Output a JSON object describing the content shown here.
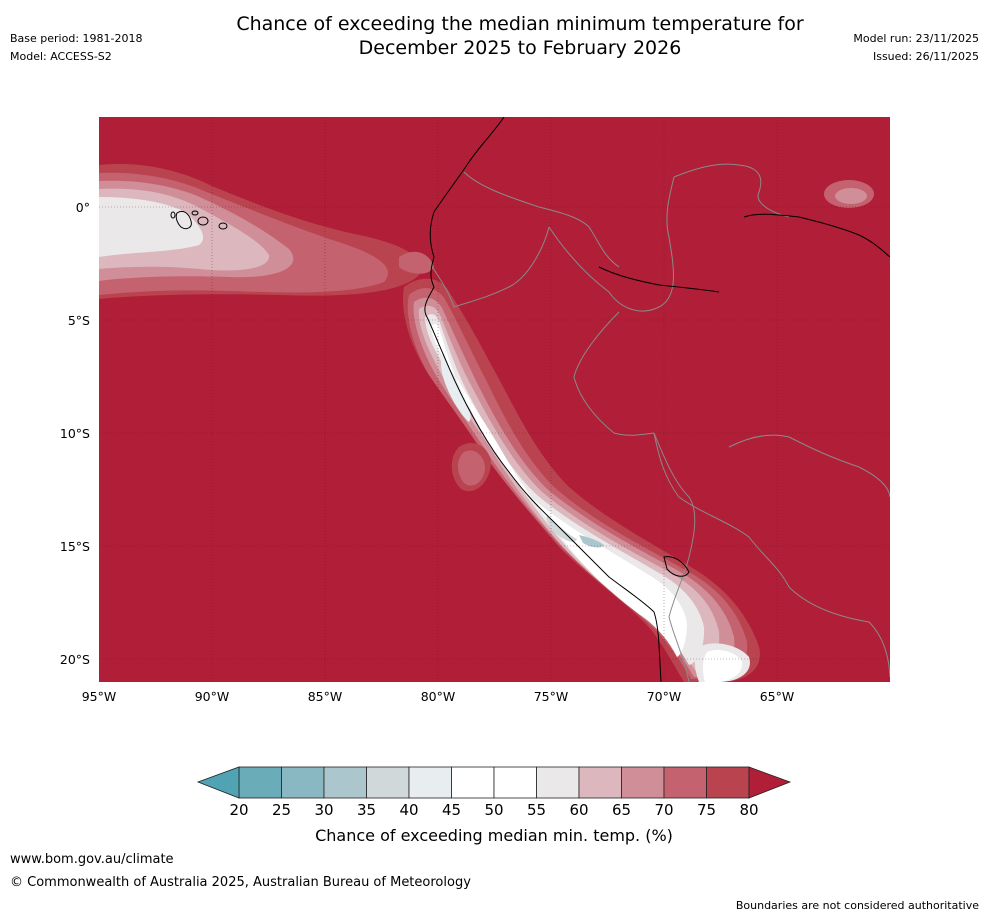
{
  "header": {
    "title_line1": "Chance of exceeding the median minimum temperature for",
    "title_line2": "December 2025 to February 2026",
    "base_period": "Base period: 1981-2018",
    "model": "Model: ACCESS-S2",
    "model_run": "Model run: 23/11/2025",
    "issued": "Issued: 26/11/2025"
  },
  "map": {
    "lat_labels": [
      "0°",
      "5°S",
      "10°S",
      "15°S",
      "20°S"
    ],
    "lon_labels": [
      "95°W",
      "90°W",
      "85°W",
      "80°W",
      "75°W",
      "70°W",
      "65°W"
    ],
    "background_color": "#b11e38"
  },
  "colorbar": {
    "ticks": [
      "20",
      "25",
      "30",
      "35",
      "40",
      "45",
      "50",
      "55",
      "60",
      "65",
      "70",
      "75",
      "80"
    ],
    "colors": [
      "#6aacb8",
      "#8ab8c2",
      "#abc7cd",
      "#d0d8da",
      "#e8edf0",
      "#ffffff",
      "#ffffff",
      "#ebe8e9",
      "#ddb7be",
      "#d08e98",
      "#c4636f",
      "#b9444f"
    ],
    "under_color": "#4fa3b2",
    "over_color": "#b11e38",
    "label": "Chance of exceeding median min. temp. (%)"
  },
  "footer": {
    "website": "www.bom.gov.au/climate",
    "copyright": "© Commonwealth of Australia 2025, Australian Bureau of Meteorology",
    "disclaimer": "Boundaries are not considered authoritative"
  }
}
